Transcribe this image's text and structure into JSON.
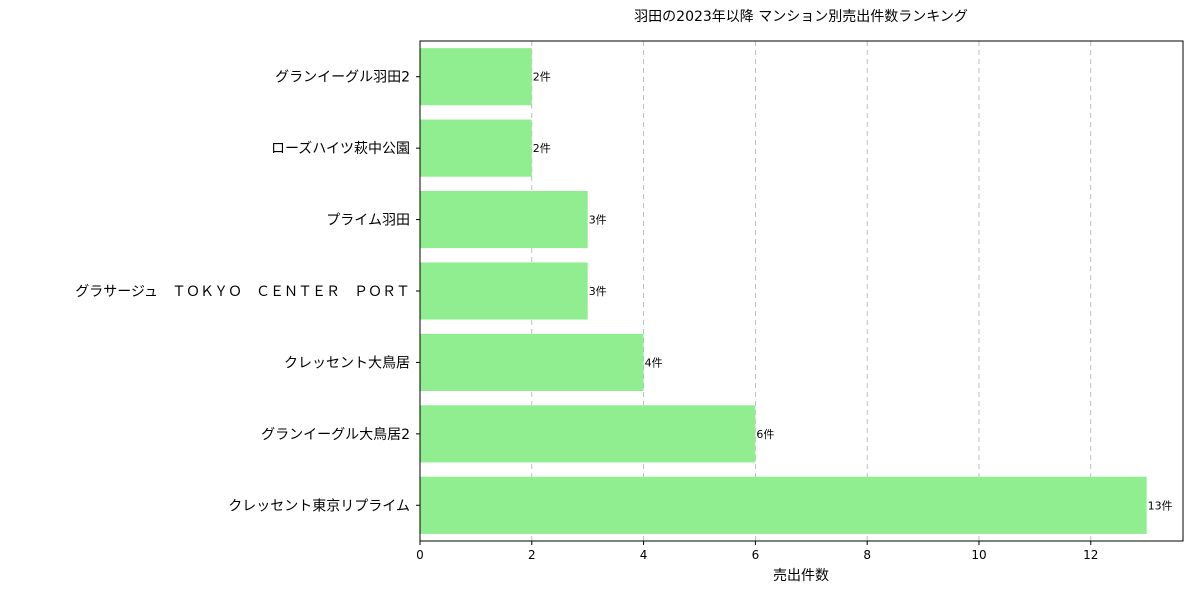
{
  "chart_data": {
    "type": "bar",
    "orientation": "horizontal",
    "title": "羽田の2023年以降 マンション別売出件数ランキング",
    "xlabel": "売出件数",
    "ylabel": "",
    "xlim": [
      0,
      13.65
    ],
    "xticks": [
      "0",
      "2",
      "4",
      "6",
      "8",
      "10",
      "12"
    ],
    "grid": "x-dashed",
    "bar_color": "#90ee90",
    "categories": [
      "グランイーグル羽田2",
      "ローズハイツ萩中公園",
      "プライム羽田",
      "グラサージュ　ＴＯＫＹＯ　ＣＥＮＴＥＲ　ＰＯＲＴ",
      "クレッセント大鳥居",
      "グランイーグル大鳥居2",
      "クレッセント東京リプライム"
    ],
    "values": [
      2,
      2,
      3,
      3,
      4,
      6,
      13
    ],
    "data_labels": [
      "2件",
      "2件",
      "3件",
      "3件",
      "4件",
      "6件",
      "13件"
    ]
  }
}
